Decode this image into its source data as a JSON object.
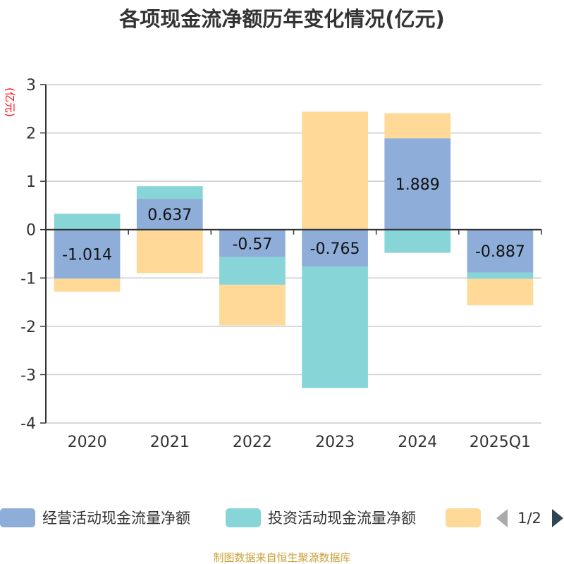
{
  "chart_data": {
    "type": "bar",
    "stacked": true,
    "title": "各项现金流净额历年变化情况(亿元)",
    "ylabel": "(亿元)",
    "xlabel": "",
    "ylim": [
      -4,
      3
    ],
    "yticks": [
      3,
      2,
      1,
      0,
      -1,
      -2,
      -3,
      -4
    ],
    "grid": true,
    "categories": [
      "2020",
      "2021",
      "2022",
      "2023",
      "2024",
      "2025Q1"
    ],
    "series": [
      {
        "name": "经营活动现金流量净额",
        "color": "#8eaed9",
        "values": [
          -1.014,
          0.637,
          -0.57,
          -0.765,
          1.889,
          -0.887
        ],
        "labels": [
          "-1.014",
          "0.637",
          "-0.57",
          "-0.765",
          "1.889",
          "-0.887"
        ]
      },
      {
        "name": "投资活动现金流量净额",
        "color": "#88d5d8",
        "values": [
          0.33,
          0.26,
          -0.57,
          -2.51,
          -0.48,
          -0.13
        ]
      },
      {
        "name": "",
        "color": "#fed998",
        "values": [
          -0.27,
          -0.9,
          -0.84,
          2.44,
          0.52,
          -0.55
        ]
      }
    ],
    "legend_position": "bottom",
    "legend_page": "1/2"
  },
  "footer": "制图数据来自恒生聚源数据库"
}
